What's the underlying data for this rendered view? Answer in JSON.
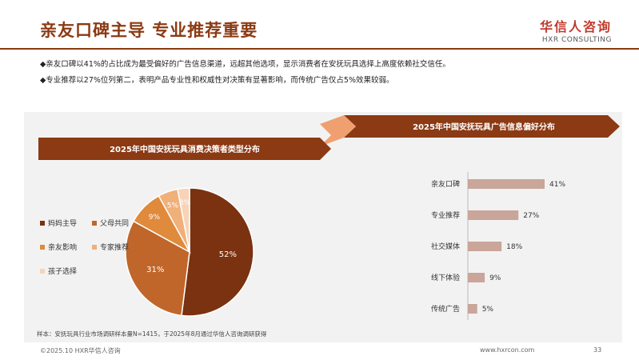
{
  "header": {
    "title": "亲友口碑主导 专业推荐重要",
    "logo_main": "华信人咨询",
    "logo_sub": "HXR CONSULTING"
  },
  "bullets": [
    "◆亲友口碑以41%的占比成为最受偏好的广告信息渠道，远超其他选项，显示消费者在安抚玩具选择上高度依赖社交信任。",
    "◆专业推荐以27%位列第二，表明产品专业性和权威性对决策有显著影响，而传统广告仅占5%效果较弱。"
  ],
  "colors": {
    "brand": "#8b3a14",
    "pie": [
      "#7a3210",
      "#c0662a",
      "#e08a3c",
      "#f0b07a",
      "#f7d3b8"
    ],
    "bar": "#c9a59a"
  },
  "chart_data": [
    {
      "type": "pie",
      "title": "2025年中国安抚玩具消费决策者类型分布",
      "categories": [
        "妈妈主导",
        "父母共同",
        "亲友影响",
        "专家推荐",
        "孩子选择"
      ],
      "values": [
        52,
        31,
        9,
        5,
        3
      ],
      "data_labels": [
        "52%",
        "31%",
        "9%",
        "5%",
        "3%"
      ],
      "legend_position": "left"
    },
    {
      "type": "bar",
      "orientation": "horizontal",
      "title": "2025年中国安抚玩具广告信息偏好分布",
      "categories": [
        "亲友口碑",
        "专业推荐",
        "社交媒体",
        "线下体验",
        "传统广告"
      ],
      "values": [
        41,
        27,
        18,
        9,
        5
      ],
      "data_labels": [
        "41%",
        "27%",
        "18%",
        "9%",
        "5%"
      ]
    }
  ],
  "footer": {
    "note": "样本：安抚玩具行业市场调研样本量N=1415，于2025年8月通过华信人咨询调研获得",
    "copyright": "©2025.10 HXR华信人咨询",
    "url": "www.hxrcon.com",
    "page": "33"
  }
}
